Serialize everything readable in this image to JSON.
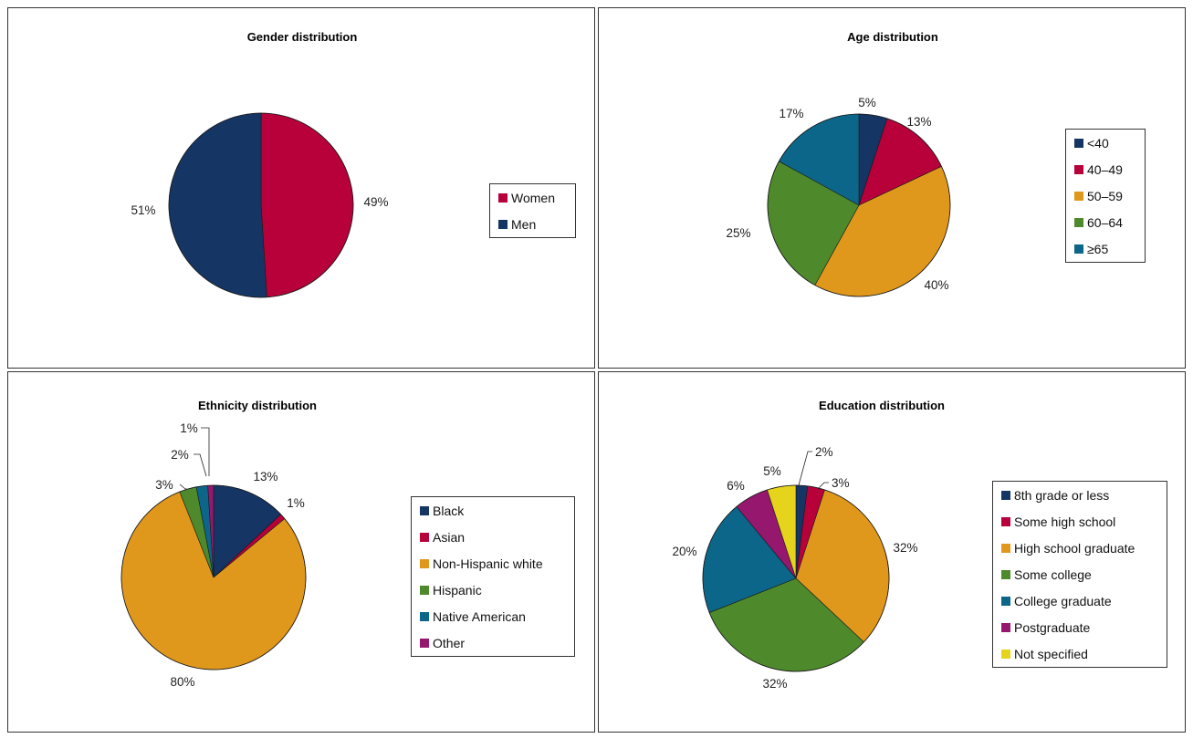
{
  "colors": {
    "navy": "#153565",
    "crimson": "#b8003a",
    "orange": "#e0981c",
    "green": "#4e8a2c",
    "teal": "#0c6689",
    "purple": "#96176e",
    "yellow": "#e6d31c"
  },
  "chart_data": [
    {
      "type": "pie",
      "title": "Gender distribution",
      "categories": [
        "Women",
        "Men"
      ],
      "values": [
        49,
        51
      ],
      "labels": [
        "49%",
        "51%"
      ],
      "colors": [
        "#b8003a",
        "#153565"
      ],
      "legend": "right"
    },
    {
      "type": "pie",
      "title": "Age distribution",
      "categories": [
        "<40",
        "40–49",
        "50–59",
        "60–64",
        "≥65"
      ],
      "values": [
        5,
        13,
        40,
        25,
        17
      ],
      "labels": [
        "5%",
        "13%",
        "40%",
        "25%",
        "17%"
      ],
      "colors": [
        "#153565",
        "#b8003a",
        "#e0981c",
        "#4e8a2c",
        "#0c6689"
      ],
      "legend": "right"
    },
    {
      "type": "pie",
      "title": "Ethnicity distribution",
      "categories": [
        "Black",
        "Asian",
        "Non-Hispanic white",
        "Hispanic",
        "Native American",
        "Other"
      ],
      "values": [
        13,
        1,
        80,
        3,
        2,
        1
      ],
      "labels": [
        "13%",
        "1%",
        "80%",
        "3%",
        "2%",
        "1%"
      ],
      "colors": [
        "#153565",
        "#b8003a",
        "#e0981c",
        "#4e8a2c",
        "#0c6689",
        "#96176e"
      ],
      "legend": "right"
    },
    {
      "type": "pie",
      "title": "Education distribution",
      "categories": [
        "8th grade or less",
        "Some high school",
        "High school graduate",
        "Some college",
        "College graduate",
        "Postgraduate",
        "Not specified"
      ],
      "values": [
        2,
        3,
        32,
        32,
        20,
        6,
        5
      ],
      "labels": [
        "2%",
        "3%",
        "32%",
        "32%",
        "20%",
        "6%",
        "5%"
      ],
      "colors": [
        "#153565",
        "#b8003a",
        "#e0981c",
        "#4e8a2c",
        "#0c6689",
        "#96176e",
        "#e6d31c"
      ],
      "legend": "right"
    }
  ]
}
